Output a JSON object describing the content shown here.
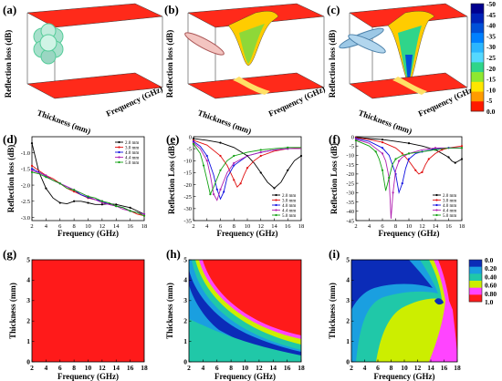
{
  "panels": {
    "a": {
      "label": "(a)"
    },
    "b": {
      "label": "(b)"
    },
    "c": {
      "label": "(c)"
    },
    "d": {
      "label": "(d)"
    },
    "e": {
      "label": "(e)"
    },
    "f": {
      "label": "(f)"
    },
    "g": {
      "label": "(g)"
    },
    "h": {
      "label": "(h)"
    },
    "i": {
      "label": "(i)"
    }
  },
  "surface_axes": {
    "z_label": "Reflection loss (dB)",
    "thickness_label": "Thickness (mm)",
    "freq_label": "Frequency (GHz)"
  },
  "colorbar_top": {
    "ticks": [
      "-50",
      "-45",
      "-40",
      "-35",
      "-30",
      "-25",
      "-20",
      "-15",
      "-10",
      "-5",
      "0.0"
    ],
    "colors": [
      "#00008f",
      "#0022b8",
      "#0050d8",
      "#0080ff",
      "#2bb6ff",
      "#55d8ff",
      "#2fd58a",
      "#8ee830",
      "#ffe600",
      "#ff9b00",
      "#ff1a00"
    ]
  },
  "colorbar_bottom": {
    "ticks": [
      "0.0",
      "0.20",
      "0.40",
      "0.60",
      "0.80",
      "1.0"
    ],
    "colors": [
      "#0b2cb8",
      "#1a9fe0",
      "#20c8a8",
      "#ccee00",
      "#ff44ff",
      "#ff1a1a"
    ]
  },
  "chart_data": [
    {
      "panel": "d",
      "type": "line",
      "xlabel": "Frequency (GHz)",
      "ylabel": "Reflection loss (dB)",
      "xlim": [
        2,
        18
      ],
      "ylim": [
        -3.1,
        -0.5
      ],
      "xticks": [
        "2",
        "4",
        "6",
        "8",
        "10",
        "12",
        "14",
        "16",
        "18"
      ],
      "yticks": [
        "-1.0",
        "-1.5",
        "-2.0",
        "-2.5",
        "-3.0"
      ],
      "legend_position": "top-right",
      "series": [
        {
          "name": "2.0 mm",
          "color": "#000000",
          "x": [
            2,
            3,
            4,
            5,
            6,
            7,
            8,
            9,
            10,
            11,
            12,
            13,
            14,
            15,
            16,
            17,
            18
          ],
          "y": [
            -0.7,
            -1.6,
            -2.1,
            -2.4,
            -2.55,
            -2.58,
            -2.5,
            -2.5,
            -2.55,
            -2.6,
            -2.6,
            -2.58,
            -2.6,
            -2.65,
            -2.7,
            -2.8,
            -2.9
          ]
        },
        {
          "name": "3.0 mm",
          "color": "#e01010",
          "x": [
            2,
            3,
            4,
            5,
            6,
            7,
            8,
            9,
            10,
            11,
            12,
            13,
            14,
            15,
            16,
            17,
            18
          ],
          "y": [
            -1.4,
            -1.55,
            -1.7,
            -1.8,
            -1.95,
            -2.1,
            -2.2,
            -2.3,
            -2.4,
            -2.45,
            -2.5,
            -2.6,
            -2.65,
            -2.7,
            -2.8,
            -2.9,
            -2.95
          ]
        },
        {
          "name": "4.0 mm",
          "color": "#1010e0",
          "x": [
            2,
            3,
            4,
            5,
            6,
            7,
            8,
            9,
            10,
            11,
            12,
            13,
            14,
            15,
            16,
            17,
            18
          ],
          "y": [
            -1.5,
            -1.6,
            -1.72,
            -1.85,
            -1.95,
            -2.05,
            -2.15,
            -2.3,
            -2.38,
            -2.45,
            -2.5,
            -2.6,
            -2.65,
            -2.7,
            -2.8,
            -2.85,
            -2.9
          ]
        },
        {
          "name": "4.4 mm",
          "color": "#b020b0",
          "x": [
            2,
            3,
            4,
            5,
            6,
            7,
            8,
            9,
            10,
            11,
            12,
            13,
            14,
            15,
            16,
            17,
            18
          ],
          "y": [
            -1.55,
            -1.62,
            -1.7,
            -1.85,
            -1.95,
            -2.05,
            -2.15,
            -2.25,
            -2.35,
            -2.45,
            -2.55,
            -2.6,
            -2.65,
            -2.75,
            -2.8,
            -2.85,
            -2.9
          ]
        },
        {
          "name": "5.0 mm",
          "color": "#10a010",
          "x": [
            2,
            3,
            4,
            5,
            6,
            7,
            8,
            9,
            10,
            11,
            12,
            13,
            14,
            15,
            16,
            17,
            18
          ],
          "y": [
            -1.6,
            -1.65,
            -1.75,
            -1.85,
            -1.95,
            -2.1,
            -2.15,
            -2.25,
            -2.35,
            -2.4,
            -2.5,
            -2.55,
            -2.65,
            -2.7,
            -2.8,
            -2.85,
            -2.95
          ]
        }
      ]
    },
    {
      "panel": "e",
      "type": "line",
      "xlabel": "Frequency (GHz)",
      "ylabel": "Reflection Loss (dB)",
      "xlim": [
        2,
        18
      ],
      "ylim": [
        -35,
        0
      ],
      "xticks": [
        "2",
        "4",
        "6",
        "8",
        "10",
        "12",
        "14",
        "16",
        "18"
      ],
      "yticks": [
        "0",
        "-5",
        "-10",
        "-15",
        "-20",
        "-25",
        "-30",
        "-35"
      ],
      "legend_position": "bottom-right",
      "series": [
        {
          "name": "2.0 mm",
          "color": "#000000",
          "x": [
            2,
            4,
            6,
            8,
            10,
            11,
            12,
            13,
            14,
            15,
            16,
            17,
            18
          ],
          "y": [
            -0.8,
            -1.5,
            -2.5,
            -4.5,
            -8,
            -11,
            -15,
            -19,
            -21.5,
            -19,
            -14,
            -10,
            -8
          ]
        },
        {
          "name": "3.0 mm",
          "color": "#e01010",
          "x": [
            2,
            4,
            6,
            7,
            8,
            8.5,
            9,
            9.5,
            10,
            11,
            12,
            14,
            16,
            18
          ],
          "y": [
            -1.5,
            -3.5,
            -8,
            -12,
            -18,
            -21,
            -19.5,
            -16,
            -13,
            -10,
            -8,
            -6,
            -5,
            -4.5
          ]
        },
        {
          "name": "4.0 mm",
          "color": "#1010e0",
          "x": [
            2,
            3,
            4,
            5,
            5.5,
            6,
            6.5,
            7,
            8,
            10,
            12,
            14,
            16,
            18
          ],
          "y": [
            -2,
            -4,
            -8,
            -16,
            -22,
            -26,
            -23,
            -17,
            -12,
            -8,
            -6.5,
            -5.5,
            -5,
            -5
          ]
        },
        {
          "name": "4.4 mm",
          "color": "#b020b0",
          "x": [
            2,
            3,
            4,
            4.5,
            5,
            5.5,
            6,
            7,
            8,
            10,
            12,
            14,
            16,
            18
          ],
          "y": [
            -2.5,
            -5,
            -10,
            -16,
            -24,
            -26.5,
            -22,
            -15,
            -11,
            -8,
            -6.5,
            -5.5,
            -5,
            -5
          ]
        },
        {
          "name": "5.0 mm",
          "color": "#10a010",
          "x": [
            2,
            3,
            3.5,
            4,
            4.5,
            5,
            6,
            7,
            8,
            10,
            12,
            14,
            16,
            18
          ],
          "y": [
            -3,
            -7,
            -12,
            -18,
            -24,
            -21,
            -14,
            -10,
            -8,
            -6.5,
            -5.5,
            -5,
            -4.5,
            -4.5
          ]
        }
      ]
    },
    {
      "panel": "f",
      "type": "line",
      "xlabel": "Frequency (GHz)",
      "ylabel": "Reflection Loss (dB)",
      "xlim": [
        2,
        18
      ],
      "ylim": [
        -45,
        0
      ],
      "xticks": [
        "2",
        "4",
        "6",
        "8",
        "10",
        "12",
        "14",
        "16",
        "18"
      ],
      "yticks": [
        "0",
        "-5",
        "-10",
        "-15",
        "-20",
        "-25",
        "-30",
        "-35",
        "-40",
        "-45"
      ],
      "legend_position": "bottom-right",
      "series": [
        {
          "name": "2.0 mm",
          "color": "#000000",
          "x": [
            2,
            4,
            6,
            8,
            10,
            12,
            14,
            15,
            16,
            16.5,
            17,
            17.5,
            18
          ],
          "y": [
            -0.3,
            -1,
            -1.5,
            -2.5,
            -3.5,
            -5,
            -7,
            -9,
            -11,
            -13,
            -14,
            -13,
            -12
          ]
        },
        {
          "name": "3.0 mm",
          "color": "#e01010",
          "x": [
            2,
            4,
            6,
            8,
            9,
            10,
            11,
            11.5,
            12,
            12.5,
            13,
            14,
            15,
            16,
            18
          ],
          "y": [
            -0.6,
            -1.5,
            -3,
            -6,
            -9,
            -13,
            -18,
            -20,
            -19,
            -15,
            -12,
            -9,
            -7,
            -6,
            -5
          ]
        },
        {
          "name": "4.0 mm",
          "color": "#1010e0",
          "x": [
            2,
            4,
            6,
            7,
            8,
            8.5,
            9,
            9.5,
            10,
            11,
            12,
            14,
            16,
            18
          ],
          "y": [
            -1,
            -2.5,
            -6,
            -10,
            -20,
            -30,
            -25,
            -17,
            -12,
            -9,
            -8,
            -6.5,
            -6,
            -6
          ]
        },
        {
          "name": "4.4 mm",
          "color": "#b020b0",
          "x": [
            2,
            4,
            6,
            6.5,
            7,
            7.3,
            7.6,
            8,
            8.5,
            9,
            10,
            12,
            14,
            16,
            18
          ],
          "y": [
            -1.5,
            -3.5,
            -9,
            -13,
            -22,
            -44,
            -30,
            -18,
            -13,
            -11,
            -9,
            -7,
            -6,
            -6,
            -6
          ]
        },
        {
          "name": "5.0 mm",
          "color": "#10a010",
          "x": [
            2,
            4,
            5,
            5.5,
            6,
            6.5,
            7,
            7.5,
            8,
            9,
            10,
            12,
            14,
            16,
            18
          ],
          "y": [
            -2,
            -5,
            -8,
            -12,
            -18,
            -29,
            -22,
            -15,
            -12,
            -10,
            -9,
            -8,
            -7,
            -6,
            -6
          ]
        }
      ]
    },
    {
      "panel": "g",
      "type": "heatmap",
      "xlabel": "Frequency (GHz)",
      "ylabel": "Thickness (mm)",
      "xlim": [
        2,
        18
      ],
      "ylim": [
        0,
        5
      ],
      "xticks": [
        "2",
        "4",
        "6",
        "8",
        "10",
        "12",
        "14",
        "16",
        "18"
      ],
      "yticks": [
        "0",
        "1",
        "2",
        "3",
        "4",
        "5"
      ],
      "description_level": 1.0
    },
    {
      "panel": "h",
      "type": "heatmap",
      "xlabel": "Frequency (GHz)",
      "ylabel": "Thickness (mm)",
      "xlim": [
        2,
        18
      ],
      "ylim": [
        0,
        5
      ],
      "xticks": [
        "2",
        "4",
        "6",
        "8",
        "10",
        "12",
        "14",
        "16",
        "18"
      ],
      "yticks": [
        "0",
        "1",
        "2",
        "3",
        "4",
        "5"
      ]
    },
    {
      "panel": "i",
      "type": "heatmap",
      "xlabel": "Frequency (GHz)",
      "ylabel": "Thickness (mm)",
      "xlim": [
        2,
        18
      ],
      "ylim": [
        0,
        5
      ],
      "xticks": [
        "2",
        "4",
        "6",
        "8",
        "10",
        "12",
        "14",
        "16",
        "18"
      ],
      "yticks": [
        "0",
        "1",
        "2",
        "3",
        "4",
        "5"
      ]
    }
  ]
}
